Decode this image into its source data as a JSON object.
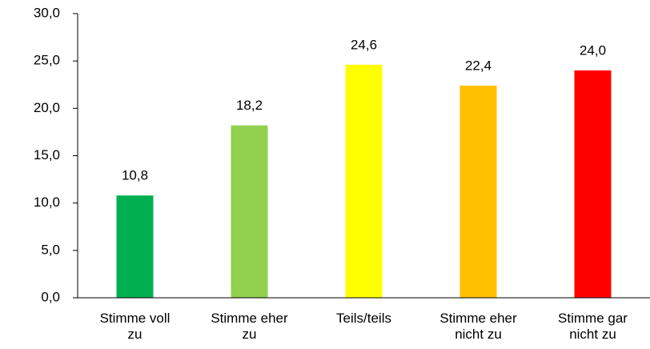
{
  "chart_data": {
    "type": "bar",
    "categories": [
      "Stimme voll zu",
      "Stimme eher zu",
      "Teils/teils",
      "Stimme eher nicht zu",
      "Stimme gar nicht zu"
    ],
    "values": [
      10.8,
      18.2,
      24.6,
      22.4,
      24.0
    ],
    "value_labels": [
      "10,8",
      "18,2",
      "24,6",
      "22,4",
      "24,0"
    ],
    "colors": [
      "#00b050",
      "#92d050",
      "#ffff00",
      "#ffc000",
      "#ff0000"
    ],
    "ylim": [
      0,
      30
    ],
    "yticks": [
      {
        "value": 0,
        "label": "0,0"
      },
      {
        "value": 5,
        "label": "5,0"
      },
      {
        "value": 10,
        "label": "10,0"
      },
      {
        "value": 15,
        "label": "15,0"
      },
      {
        "value": 20,
        "label": "20,0"
      },
      {
        "value": 25,
        "label": "25,0"
      },
      {
        "value": 30,
        "label": "30,0"
      }
    ],
    "grid": false
  }
}
